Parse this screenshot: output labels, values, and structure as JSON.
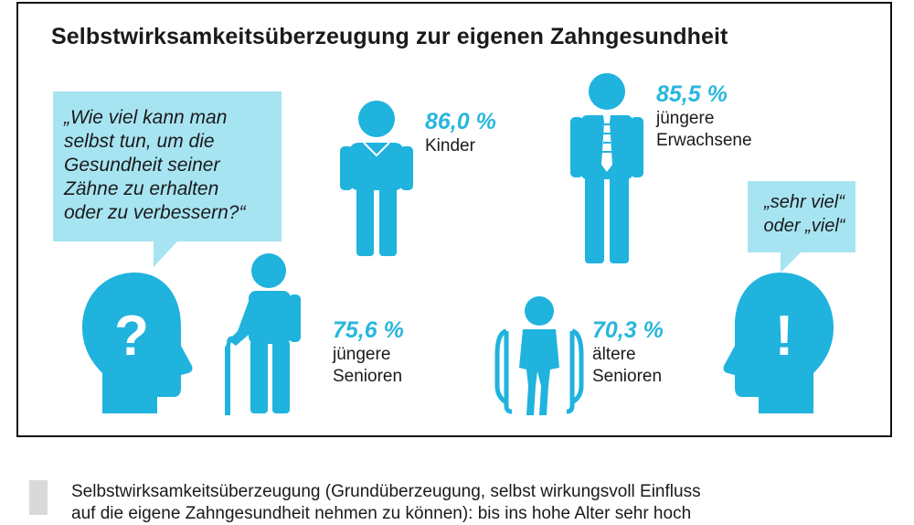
{
  "title": "Selbstwirksamkeitsüberzeugung zur eigenen Zahngesundheit",
  "question_bubble": {
    "lines": [
      "„Wie viel kann man",
      "selbst tun, um die",
      "Gesundheit seiner",
      "Zähne zu erhalten",
      "oder zu verbessern?“"
    ]
  },
  "answer_bubble": {
    "lines": [
      "„sehr viel“",
      "oder „viel“"
    ]
  },
  "groups": [
    {
      "percent": "86,0 %",
      "label_lines": [
        "Kinder"
      ],
      "icon": "child-icon"
    },
    {
      "percent": "85,5 %",
      "label_lines": [
        "jüngere",
        "Erwachsene"
      ],
      "icon": "adult-with-tie-icon"
    },
    {
      "percent": "75,6 %",
      "label_lines": [
        "jüngere",
        "Senioren"
      ],
      "icon": "senior-with-cane-icon"
    },
    {
      "percent": "70,3 %",
      "label_lines": [
        "ältere",
        "Senioren"
      ],
      "icon": "wheelchair-senior-icon"
    }
  ],
  "heads": {
    "left_symbol": "?",
    "right_symbol": "!"
  },
  "colors": {
    "accent": "#29b6de",
    "icon": "#1fb3de",
    "bubble": "#a7e4f2",
    "border": "#111111"
  },
  "footer": {
    "lines": [
      "Selbstwirksamkeitsüberzeugung (Grundüberzeugung, selbst wirkungsvoll Einfluss",
      "auf die eigene Zahngesundheit nehmen zu können): bis ins hohe Alter sehr hoch"
    ]
  }
}
